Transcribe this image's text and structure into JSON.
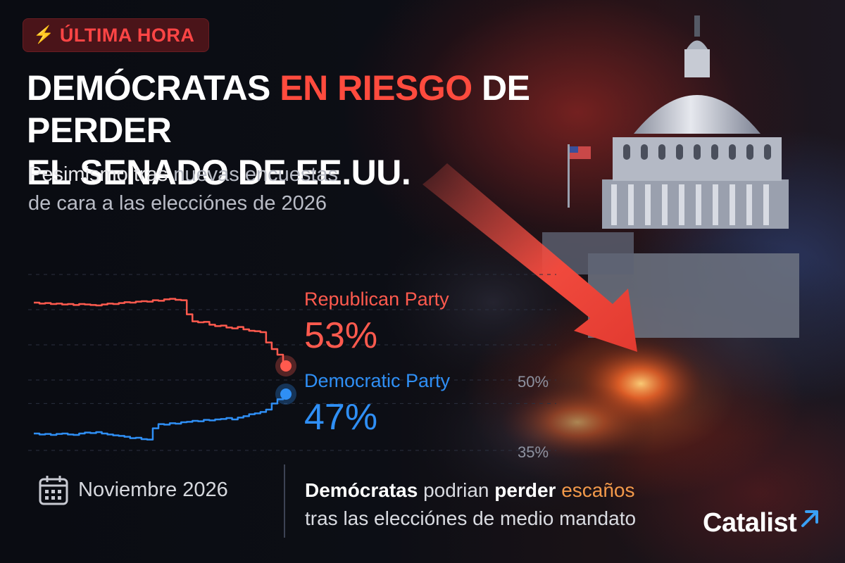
{
  "badge": {
    "icon": "lightning-icon",
    "label": "ÚLTIMA HORA"
  },
  "headline": {
    "part1": "DEMÓCRATAS ",
    "highlight": "EN RIESGO",
    "part2": " DE PERDER",
    "line2": "EL SENADO DE EE.UU."
  },
  "subtitle": {
    "part1": "Pesimismo tras ",
    "part2": "nuevas encuestas",
    "line2": "de cara a las elecciónes de 2026"
  },
  "chart_data": {
    "type": "line",
    "title": "",
    "xlabel": "",
    "ylabel": "",
    "y_ticks": [
      "50%",
      "35%"
    ],
    "grid": true,
    "series": [
      {
        "name": "Republican Party",
        "color": "#ff5a4e",
        "end_label": "53%",
        "values": [
          66.5,
          66.3,
          66.4,
          66.2,
          66.3,
          66.1,
          66.2,
          66.0,
          66.2,
          66.1,
          66.0,
          65.9,
          66.1,
          66.3,
          66.2,
          66.4,
          66.6,
          66.5,
          66.7,
          66.8,
          66.7,
          67.0,
          66.9,
          67.2,
          67.3,
          67.1,
          67.0,
          64.0,
          62.5,
          62.3,
          62.4,
          61.8,
          61.5,
          61.6,
          61.2,
          61.0,
          61.3,
          60.8,
          60.5,
          60.4,
          60.2,
          58.0,
          56.6,
          55.4,
          53.0
        ]
      },
      {
        "name": "Democratic Party",
        "color": "#2f8ff5",
        "end_label": "47%",
        "values": [
          38.6,
          38.4,
          38.5,
          38.3,
          38.5,
          38.6,
          38.4,
          38.3,
          38.6,
          38.8,
          38.7,
          38.9,
          38.6,
          38.4,
          38.2,
          38.1,
          37.9,
          37.6,
          37.7,
          37.4,
          37.3,
          39.7,
          40.6,
          40.5,
          40.8,
          40.7,
          41.0,
          41.1,
          41.3,
          41.2,
          41.5,
          41.4,
          41.6,
          41.7,
          41.9,
          41.6,
          42.0,
          42.3,
          42.7,
          42.9,
          43.2,
          43.7,
          45.0,
          45.9,
          47.0
        ]
      }
    ]
  },
  "footer": {
    "date_icon": "calendar-icon",
    "date": "Noviembre 2026",
    "msg_bold": "Demócratas",
    "msg_b2": " podrian ",
    "msg_bold2": "perder",
    "msg_space": " ",
    "msg_orange": "escaños",
    "msg_line2": "tras las elecciónes de medio mandato"
  },
  "logo": {
    "name": "Catalist",
    "icon": "arrow-up-right-icon"
  },
  "colors": {
    "republican": "#ff5a4e",
    "democratic": "#2f8ff5",
    "alert": "#ff4b3e",
    "accent": "#f2994a"
  }
}
